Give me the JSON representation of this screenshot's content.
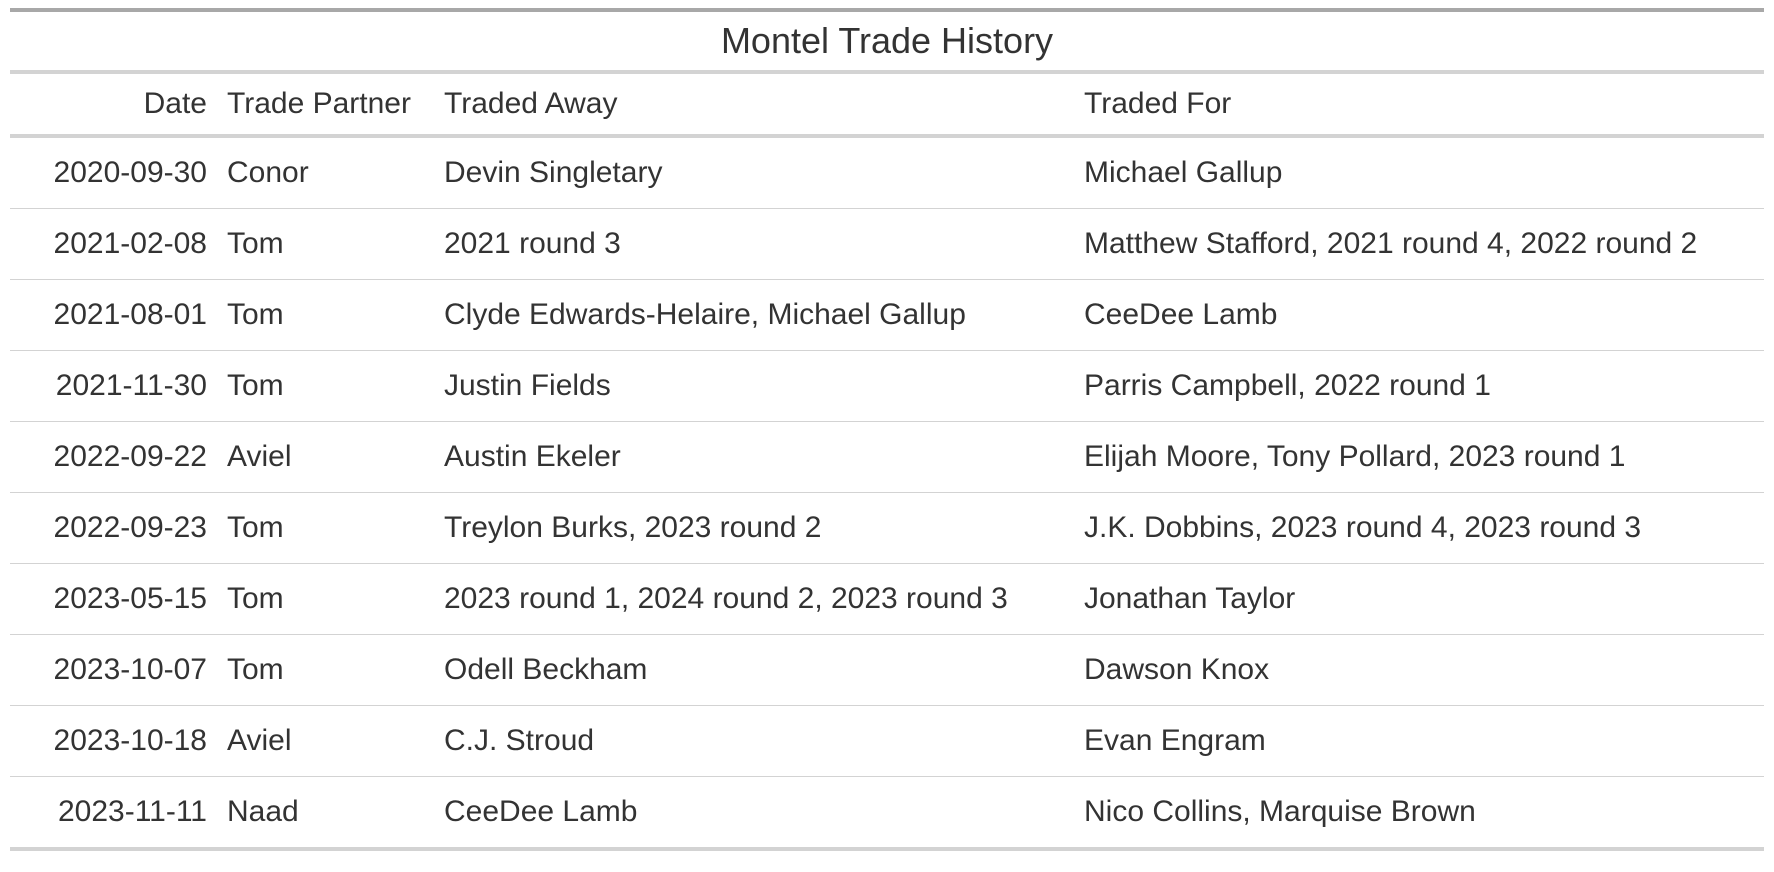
{
  "table": {
    "title": "Montel Trade History",
    "columns": [
      "Date",
      "Trade Partner",
      "Traded Away",
      "Traded For"
    ],
    "rows": [
      [
        "2020-09-30",
        "Conor",
        "Devin Singletary",
        "Michael Gallup"
      ],
      [
        "2021-02-08",
        "Tom",
        "2021 round 3",
        "Matthew Stafford, 2021 round 4, 2022 round 2"
      ],
      [
        "2021-08-01",
        "Tom",
        "Clyde Edwards-Helaire, Michael Gallup",
        "CeeDee Lamb"
      ],
      [
        "2021-11-30",
        "Tom",
        "Justin Fields",
        "Parris Campbell, 2022 round 1"
      ],
      [
        "2022-09-22",
        "Aviel",
        "Austin Ekeler",
        "Elijah Moore, Tony Pollard, 2023 round 1"
      ],
      [
        "2022-09-23",
        "Tom",
        "Treylon Burks, 2023 round 2",
        "J.K. Dobbins, 2023 round 4, 2023 round 3"
      ],
      [
        "2023-05-15",
        "Tom",
        "2023 round 1, 2024 round 2, 2023 round 3",
        "Jonathan Taylor"
      ],
      [
        "2023-10-07",
        "Tom",
        "Odell Beckham",
        "Dawson Knox"
      ],
      [
        "2023-10-18",
        "Aviel",
        "C.J. Stroud",
        "Evan Engram"
      ],
      [
        "2023-11-11",
        "Naad",
        "CeeDee Lamb",
        "Nico Collins, Marquise Brown"
      ]
    ]
  }
}
